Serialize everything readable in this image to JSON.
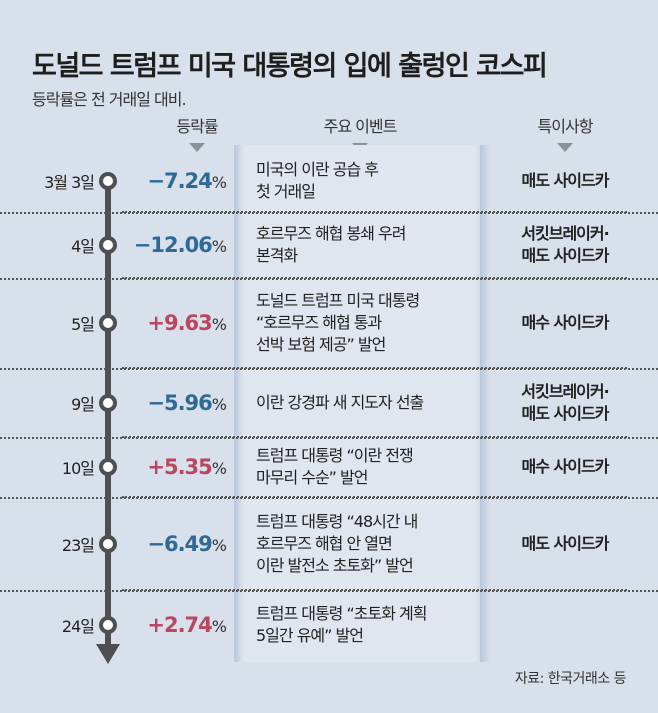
{
  "title": "도널드 트럼프 미국 대통령의 입에 출렁인 코스피",
  "subtitle": "등락률은 전 거래일 대비.",
  "source": "자료: 한국거래소 등",
  "colors": {
    "negative": "#2e6a98",
    "positive": "#b8475f",
    "background": "#d8e0eb"
  },
  "chart_data": {
    "type": "table",
    "columns": [
      "등락률",
      "주요 이벤트",
      "특이사항"
    ],
    "rows": [
      {
        "date": "3월 3일",
        "change": "−7.24",
        "value": -7.24,
        "unit": "%",
        "event": [
          "미국의 이란 공습 후",
          "첫 거래일"
        ],
        "note": [
          "매도 사이드카"
        ]
      },
      {
        "date": "4일",
        "change": "−12.06",
        "value": -12.06,
        "unit": "%",
        "event": [
          "호르무즈 해협 봉쇄 우려",
          "본격화"
        ],
        "note": [
          "서킷브레이커·",
          "매도 사이드카"
        ]
      },
      {
        "date": "5일",
        "change": "+9.63",
        "value": 9.63,
        "unit": "%",
        "event": [
          "도널드 트럼프 미국 대통령",
          "“호르무즈 해협 통과",
          "선박 보험 제공” 발언"
        ],
        "note": [
          "매수 사이드카"
        ]
      },
      {
        "date": "9일",
        "change": "−5.96",
        "value": -5.96,
        "unit": "%",
        "event": [
          "이란 강경파 새 지도자 선출"
        ],
        "note": [
          "서킷브레이커·",
          "매도 사이드카"
        ]
      },
      {
        "date": "10일",
        "change": "+5.35",
        "value": 5.35,
        "unit": "%",
        "event": [
          "트럼프 대통령 “이란 전쟁",
          "마무리 수순” 발언"
        ],
        "note": [
          "매수 사이드카"
        ]
      },
      {
        "date": "23일",
        "change": "−6.49",
        "value": -6.49,
        "unit": "%",
        "event": [
          "트럼프 대통령 “48시간 내",
          "호르무즈 해협 안 열면",
          "이란 발전소 초토화” 발언"
        ],
        "note": [
          "매도 사이드카"
        ]
      },
      {
        "date": "24일",
        "change": "+2.74",
        "value": 2.74,
        "unit": "%",
        "event": [
          "트럼프 대통령 “초토화 계획",
          "5일간 유예” 발언"
        ],
        "note": []
      }
    ]
  }
}
